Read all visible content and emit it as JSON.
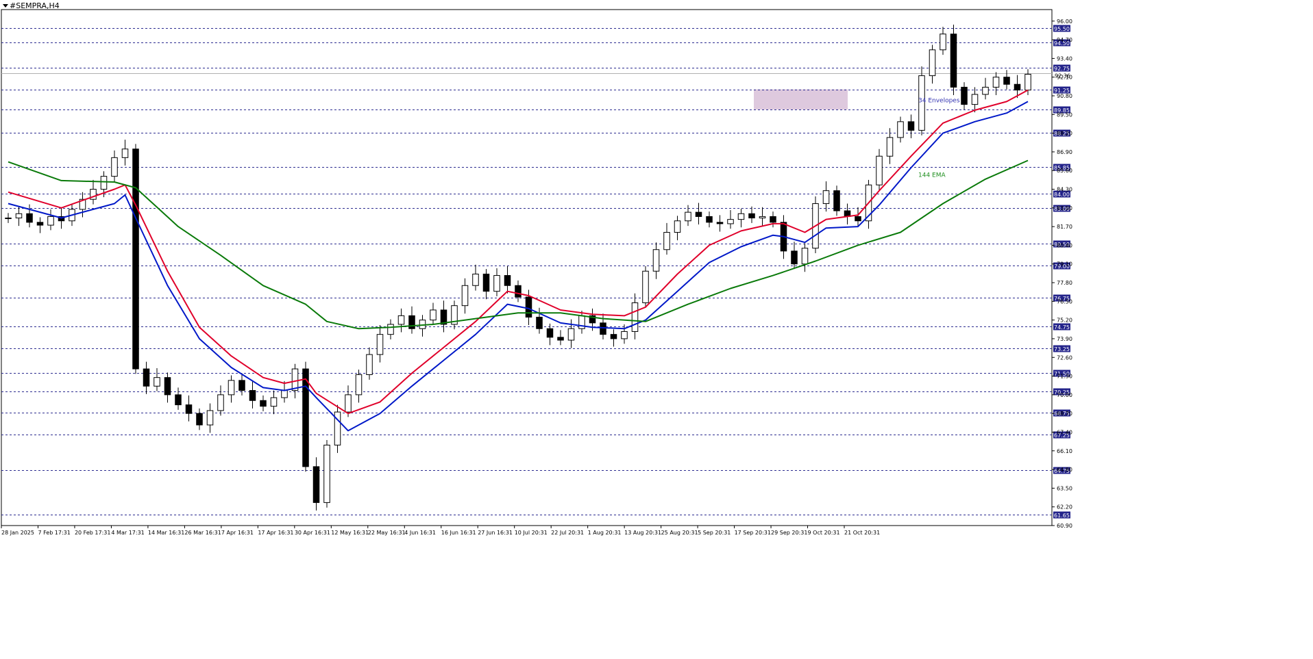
{
  "window": {
    "title": "#SEMPRA,H4"
  },
  "chart_data": {
    "type": "candlestick",
    "symbol": "#SEMPRA",
    "timeframe": "H4",
    "ylim": [
      60.9,
      96.8
    ],
    "x_tick_labels": [
      "28 Jan 2025",
      "7 Feb 17:31",
      "20 Feb 17:31",
      "4 Mar 17:31",
      "14 Mar 16:31",
      "26 Mar 16:31",
      "7 Apr 16:31",
      "17 Apr 16:31",
      "30 Apr 16:31",
      "12 May 16:31",
      "22 May 16:31",
      "4 Jun 16:31",
      "16 Jun 16:31",
      "27 Jun 16:31",
      "10 Jul 20:31",
      "22 Jul 20:31",
      "1 Aug 20:31",
      "13 Aug 20:31",
      "25 Aug 20:31",
      "5 Sep 20:31",
      "17 Sep 20:31",
      "29 Sep 20:31",
      "9 Oct 20:31",
      "21 Oct 20:31"
    ],
    "y_tick_labels": [
      "96.00",
      "94.70",
      "93.40",
      "92.10",
      "90.80",
      "89.50",
      "88.20",
      "86.90",
      "85.60",
      "84.30",
      "83.00",
      "81.70",
      "80.40",
      "79.10",
      "77.80",
      "76.50",
      "75.20",
      "73.90",
      "72.60",
      "71.30",
      "70.00",
      "68.70",
      "67.40",
      "66.10",
      "64.80",
      "63.50",
      "62.20",
      "60.90"
    ],
    "horizontal_levels": [
      "95.50",
      "94.50",
      "92.75",
      "91.25",
      "89.85",
      "88.25",
      "85.85",
      "84.00",
      "83.00",
      "80.50",
      "79.00",
      "76.75",
      "74.75",
      "73.25",
      "71.50",
      "70.25",
      "68.75",
      "67.25",
      "64.75",
      "61.65"
    ],
    "current_price": "92.36",
    "zone": {
      "from": 89.85,
      "to": 91.25,
      "color": "#d8bfd8"
    },
    "annotations": [
      {
        "text": "34 Envelopes",
        "color": "#3030b0"
      },
      {
        "text": "144 EMA",
        "color": "#1f8f1f"
      }
    ],
    "colors": {
      "envelope_upper": "#e0002a",
      "envelope_lower": "#0018c8",
      "ema": "#0a7a0a",
      "candles": "#000000",
      "level_lines": "#2b2b8f",
      "level_tag_bg": "#23238a"
    },
    "series": [
      {
        "role": "candles",
        "close": [
          82.3,
          82.6,
          82.0,
          81.8,
          82.4,
          82.1,
          82.9,
          83.6,
          84.3,
          85.2,
          86.5,
          87.1,
          71.8,
          70.6,
          71.2,
          70.0,
          69.3,
          68.7,
          67.9,
          68.9,
          70.0,
          71.0,
          70.3,
          69.6,
          69.2,
          69.8,
          70.3,
          71.8,
          65.0,
          62.5,
          66.5,
          68.8,
          70.0,
          71.4,
          72.8,
          74.2,
          74.9,
          75.5,
          74.6,
          75.2,
          75.9,
          74.9,
          76.2,
          77.6,
          78.4,
          77.2,
          78.3,
          77.6,
          76.8,
          75.4,
          74.6,
          74.0,
          73.8,
          74.6,
          75.5,
          75.0,
          74.2,
          73.9,
          74.4,
          76.4,
          78.6,
          80.1,
          81.3,
          82.1,
          82.7,
          82.4,
          82.0,
          81.9,
          82.2,
          82.6,
          82.3,
          82.4,
          82.0,
          80.0,
          79.1,
          80.2,
          83.3,
          84.2,
          82.8,
          82.4,
          82.1,
          84.6,
          86.6,
          87.9,
          89.0,
          88.4,
          92.2,
          94.0,
          95.1,
          91.4,
          90.2,
          90.9,
          91.4,
          92.1,
          91.6,
          91.2,
          92.3
        ]
      },
      {
        "name": "34 Envelopes",
        "role": "envelope_upper",
        "x": [
          0,
          5,
          10,
          11,
          12,
          15,
          18,
          21,
          24,
          26,
          28,
          29,
          32,
          35,
          38,
          41,
          44,
          46,
          47,
          49,
          52,
          55,
          58,
          60,
          63,
          66,
          69,
          72,
          73,
          75,
          77,
          80,
          82,
          85,
          88,
          91,
          94,
          96
        ],
        "values": [
          84.1,
          83.0,
          84.3,
          84.6,
          83.2,
          78.6,
          74.7,
          72.7,
          71.2,
          70.8,
          71.1,
          70.1,
          68.7,
          69.5,
          71.5,
          73.3,
          75.1,
          76.5,
          77.2,
          76.9,
          75.9,
          75.6,
          75.5,
          76.1,
          78.4,
          80.4,
          81.4,
          81.9,
          81.9,
          81.3,
          82.2,
          82.5,
          84.2,
          86.6,
          88.9,
          89.8,
          90.4,
          91.2
        ]
      },
      {
        "name": "34 Envelopes",
        "role": "envelope_lower",
        "x": [
          0,
          5,
          10,
          11,
          12,
          15,
          18,
          21,
          24,
          26,
          28,
          29,
          32,
          35,
          38,
          41,
          44,
          46,
          47,
          49,
          52,
          55,
          58,
          60,
          63,
          66,
          69,
          72,
          73,
          75,
          77,
          80,
          82,
          85,
          88,
          91,
          94,
          96
        ],
        "values": [
          83.3,
          82.3,
          83.3,
          83.9,
          82.3,
          77.6,
          73.9,
          71.9,
          70.5,
          70.3,
          70.6,
          69.8,
          67.5,
          68.7,
          70.6,
          72.4,
          74.2,
          75.6,
          76.3,
          76.0,
          75.0,
          74.7,
          74.6,
          75.2,
          77.2,
          79.2,
          80.3,
          81.1,
          81.0,
          80.6,
          81.6,
          81.7,
          83.2,
          85.8,
          88.2,
          89.0,
          89.6,
          90.4
        ]
      },
      {
        "name": "144 EMA",
        "role": "ema",
        "x": [
          0,
          5,
          10,
          12,
          16,
          20,
          24,
          28,
          30,
          33,
          36,
          40,
          44,
          48,
          52,
          56,
          60,
          64,
          68,
          72,
          76,
          80,
          84,
          88,
          92,
          96
        ],
        "values": [
          86.2,
          84.9,
          84.8,
          84.4,
          81.7,
          79.7,
          77.6,
          76.3,
          75.1,
          74.6,
          74.7,
          74.9,
          75.3,
          75.7,
          75.7,
          75.3,
          75.1,
          76.3,
          77.4,
          78.3,
          79.3,
          80.4,
          81.3,
          83.3,
          85.0,
          86.3
        ]
      }
    ]
  }
}
